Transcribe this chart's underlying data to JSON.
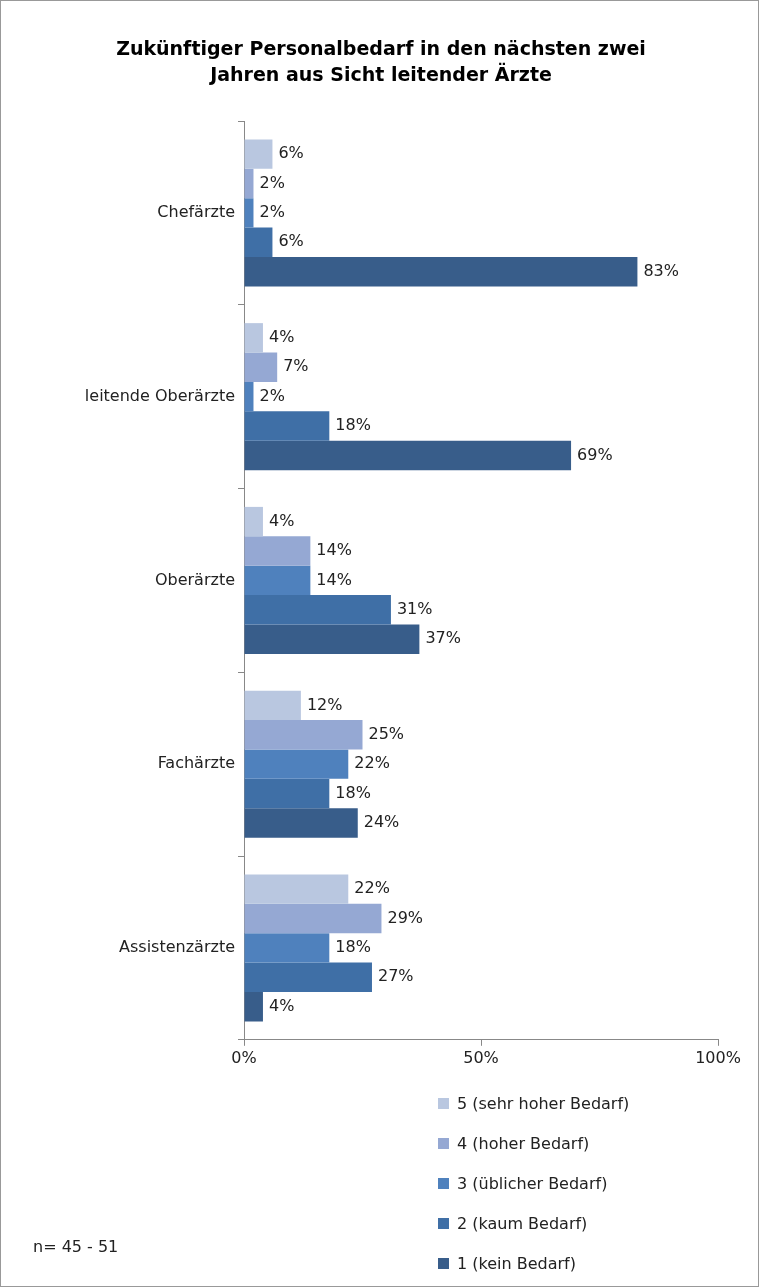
{
  "chart_data": {
    "type": "bar",
    "orientation": "horizontal",
    "title": "Zukünftiger Personalbedarf in den nächsten zwei Jahren aus Sicht leitender Ärzte",
    "categories": [
      "Chefärzte",
      "leitende Oberärzte",
      "Oberärzte",
      "Fachärzte",
      "Assistenzärzte"
    ],
    "series": [
      {
        "name": "5 (sehr hoher Bedarf)",
        "color": "#b9c7e0",
        "values": [
          6,
          4,
          4,
          12,
          22
        ],
        "value_labels": [
          "6%",
          "4%",
          "4%",
          "12%",
          "22%"
        ]
      },
      {
        "name": "4 (hoher Bedarf)",
        "color": "#95a8d3",
        "values": [
          2,
          7,
          14,
          25,
          29
        ],
        "value_labels": [
          "2%",
          "7%",
          "14%",
          "25%",
          "29%"
        ]
      },
      {
        "name": "3 (üblicher Bedarf)",
        "color": "#4f81bd",
        "values": [
          2,
          2,
          14,
          22,
          18
        ],
        "value_labels": [
          "2%",
          "2%",
          "14%",
          "22%",
          "18%"
        ]
      },
      {
        "name": "2 (kaum Bedarf)",
        "color": "#3f6fa6",
        "values": [
          6,
          18,
          31,
          18,
          27
        ],
        "value_labels": [
          "6%",
          "18%",
          "31%",
          "18%",
          "27%"
        ]
      },
      {
        "name": "1 (kein Bedarf)",
        "color": "#385d8a",
        "values": [
          83,
          69,
          37,
          24,
          4
        ],
        "value_labels": [
          "83%",
          "69%",
          "37%",
          "24%",
          "4%"
        ]
      }
    ],
    "xlim": [
      0,
      100
    ],
    "xticks": [
      {
        "value": 0,
        "label": "0%"
      },
      {
        "value": 50,
        "label": "50%"
      },
      {
        "value": 100,
        "label": "100%"
      }
    ],
    "grid": false,
    "legend": "bottom right",
    "annotations": [
      "n= 45 - 51"
    ]
  }
}
